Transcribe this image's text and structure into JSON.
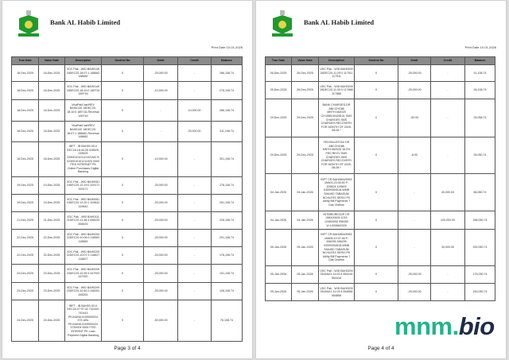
{
  "bank_name": "Bank AL Habib Limited",
  "print_date": "Print Date 10-01-2026",
  "columns": [
    "Tran Date",
    "Value Date",
    "Description",
    "DocInst No",
    "Debit",
    "Credit",
    "Balance"
  ],
  "watermark": {
    "part1": "mnm.",
    "part2": "bio",
    "color": "#22b38a"
  },
  "pages": [
    {
      "footer": "Page 3 of 4",
      "rows": [
        [
          "18-Dec-2025",
          "18-Dec-2025",
          "VDC Pak - WID BAH0149 18DEC20-18:07:1 188682 188682",
          "0",
          "-25,000.00",
          "-",
          "286,108.74"
        ],
        [
          "18-Dec-2025",
          "18-Dec-2025",
          "VDC Pak - WID BAH0149 18DEC20-18:10:0 189716 189716",
          "0",
          "-10,000.00",
          "-",
          "276,108.74"
        ],
        [
          "18-Dec-2025",
          "18-Dec-2025",
          "VisaPakCashREV BAH0149 18DEC20-18:10:0 189716-Reversal 189716",
          "0",
          "-",
          "10,000.00",
          "286,108.74"
        ],
        [
          "18-Dec-2025",
          "18-Dec-2025",
          "VisaPakCashREV BAH0149 18DEC20-18:07:1 188682-Reversal 188682",
          "0",
          "-",
          "25,000.00",
          "311,108.74"
        ],
        [
          "18-Dec-2025",
          "18-Dec-2025",
          "IBFT - IB BAH00-00-0 DEC18-18:40:28 028525-028525 0250010101121921MZ B 0230010101211920 0000 ITED INTERNET PK Online Purchases Digital Banking",
          "0",
          "-10,000.00",
          "-",
          "301,108.74"
        ],
        [
          "19-Dec-2025",
          "19-Dec-2025",
          "VDC Pak - WID BAH0081 19DEC20-12:19:0 329171 329171",
          "0",
          "-25,000.00",
          "-",
          "276,108.74"
        ],
        [
          "19-Dec-2025",
          "19-Dec-2025",
          "VDC Pak - WID BAH0081 19DEC20-12:20:1 329642 329642",
          "0",
          "-25,000.00",
          "-",
          "251,108.74"
        ],
        [
          "21-Dec-2025",
          "21-Dec-2025",
          "VDC Pak - WID BAH0111 21DEC20-11:46:4 838433 838433",
          "0",
          "-25,000.00",
          "-",
          "226,108.74"
        ],
        [
          "22-Dec-2025",
          "22-Dec-2025",
          "VDC Pak - WID BAH0209 22DEC20-10:06:3 118583 118583",
          "0",
          "-25,000.00",
          "-",
          "201,108.74"
        ],
        [
          "22-Dec-2025",
          "22-Dec-2025",
          "VDC Pak - WID BAH0209 22DEC20-10:07:3 118627 118627",
          "0",
          "-25,000.00",
          "-",
          "176,108.74"
        ],
        [
          "23-Dec-2025",
          "23-Dec-2025",
          "VDC Pak - WID BAH0209 23DEC20-10:39:3 447920 447920",
          "0",
          "-25,000.00",
          "-",
          "151,108.74"
        ],
        [
          "23-Dec-2025",
          "23-Dec-2025",
          "VDC Pak - WID BAH0209 23DEC20-10:40:3 448261 448261",
          "0",
          "-25,000.00",
          "-",
          "126,108.74"
        ],
        [
          "24-Dec-2025",
          "24-Dec-2025",
          "IBFT - IB BAH00-93-0 DEC24-07:07:42 742443-742443 PK44UNIL0109000024 373-UBL PK44UNIL0109000024 3730004 0000 ITED INTERNT PK Loan Payment Digital Banking",
          "0",
          "-50,000.00",
          "-",
          "76,108.74"
        ]
      ]
    },
    {
      "footer": "Page 4 of 4",
      "rows": [
        [
          "26-Dec-2025",
          "26-Dec-2025",
          "VDC Pak - WID BAH0209 26DEC20-11:29:3 117511 117511",
          "0",
          "-25,000.00",
          "-",
          "51,108.74"
        ],
        [
          "26-Dec-2025",
          "26-Dec-2025",
          "VDC Pak - WID BAH0209 26DEC20-11:30:3 117888 117888",
          "0",
          "-25,000.00",
          "-",
          "26,108.74"
        ],
        [
          "29-Dec-2025",
          "29-Dec-2025",
          "BANK CHARGES-DR ABCCHG88 MNTH:082025 CH:088100428101 SMS CHARGES SMS CHARGES RECOVERY FOR MONTH OF 2025-08-08 *",
          "0",
          "-50.00",
          "-",
          "26,058.74"
        ],
        [
          "29-Dec-2025",
          "29-Dec-2025",
          "FED/SALESTAX DR ABCCHG88 MNTH:082025 16.0% FED RECV SMS CHARGES SMS CHARGES RECOVERY FOR MONTH OF 2025-08-08 *",
          "0",
          "-8.00",
          "-",
          "26,050.74"
        ],
        [
          "04-Jan-2026",
          "04-Jan-2026",
          "IBFT CR BAH0804/5953 JAN03-23:35:50 P-109824-109824 03009394518-WMB SHAHID TABASUM NCHLESS SERVI PK Utility Bill Payments 7 Gas Onelink",
          "0",
          "-",
          "40,000.00",
          "66,050.74"
        ],
        [
          "04-Jan-2026",
          "04-Jan-2026",
          "INTBRK/RECDP CR 098100426 1015 1248/0050 596450 Vr:100068/2026",
          "0",
          "-",
          "100,000.00",
          "166,050.74"
        ],
        [
          "05-Jan-2026",
          "05-Jan-2026",
          "IBFT CR BAH0804/5953 JAN05-10:37:46 P-456295-456295 03009394518-WMB SHAHID TABASUM NCHLESS SERVI PK Utility Bill Payments 7 Gas Onelink",
          "0",
          "-",
          "34,000.00",
          "200,050.74"
        ],
        [
          "05-Jan-2026",
          "05-Jan-2026",
          "VDC Pak - WID BAH0209 05JAN21-11:02:4 554418 554418",
          "0",
          "-25,000.00",
          "-",
          "175,050.74"
        ],
        [
          "05-Jan-2026",
          "05-Jan-2026",
          "VDC Pak - WID BAH0209 05JAN21-11:03:4 554858 554858",
          "0",
          "-25,000.00",
          "-",
          "150,050.74"
        ]
      ]
    }
  ]
}
